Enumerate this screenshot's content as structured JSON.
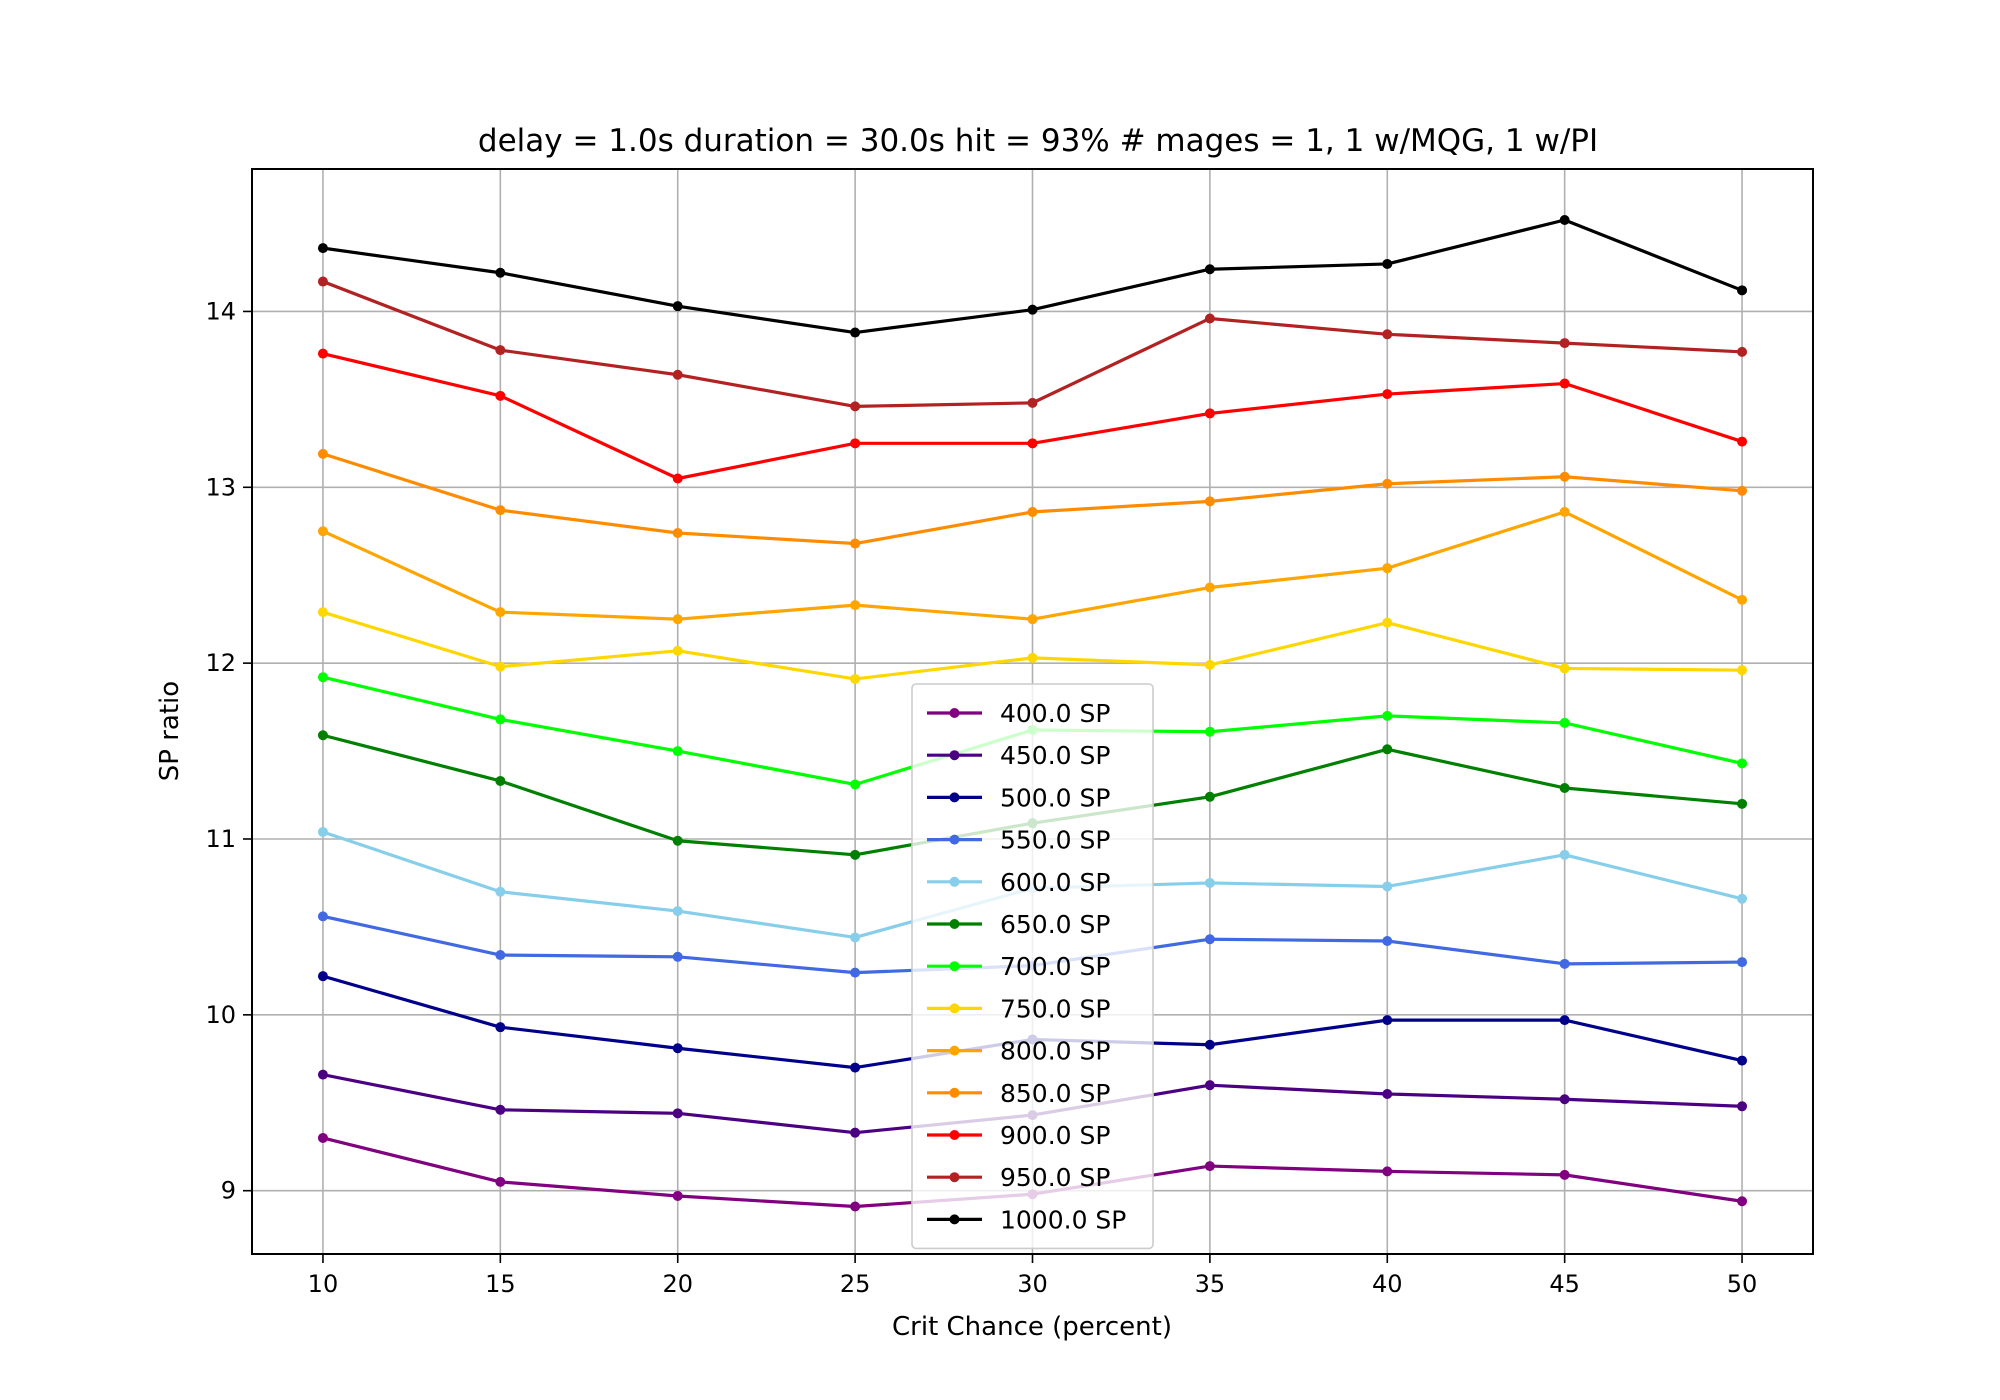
{
  "chart_data": {
    "type": "line",
    "title": "delay = 1.0s duration = 30.0s hit = 93% # mages = 1, 1 w/MQG, 1 w/PI",
    "xlabel": "Crit Chance (percent)",
    "ylabel": "SP ratio",
    "x": [
      10,
      15,
      20,
      25,
      30,
      35,
      40,
      45,
      50
    ],
    "xlim": [
      8.0,
      52.0
    ],
    "ylim": [
      8.64,
      14.81
    ],
    "xticks": [
      "10",
      "15",
      "20",
      "25",
      "30",
      "35",
      "40",
      "45",
      "50"
    ],
    "yticks": [
      "9",
      "10",
      "11",
      "12",
      "13",
      "14"
    ],
    "grid": true,
    "legend_position": "lower-center",
    "series": [
      {
        "name": "400.0 SP",
        "color": "#800080",
        "values": [
          9.3,
          9.05,
          8.97,
          8.91,
          8.98,
          9.14,
          9.11,
          9.09,
          8.94
        ]
      },
      {
        "name": "450.0 SP",
        "color": "#4b0082",
        "values": [
          9.66,
          9.46,
          9.44,
          9.33,
          9.43,
          9.6,
          9.55,
          9.52,
          9.48
        ]
      },
      {
        "name": "500.0 SP",
        "color": "#00008b",
        "values": [
          10.22,
          9.93,
          9.81,
          9.7,
          9.86,
          9.83,
          9.97,
          9.97,
          9.74
        ]
      },
      {
        "name": "550.0 SP",
        "color": "#4169e1",
        "values": [
          10.56,
          10.34,
          10.33,
          10.24,
          10.28,
          10.43,
          10.42,
          10.29,
          10.3
        ]
      },
      {
        "name": "600.0 SP",
        "color": "#87ceeb",
        "values": [
          11.04,
          10.7,
          10.59,
          10.44,
          10.72,
          10.75,
          10.73,
          10.91,
          10.66
        ]
      },
      {
        "name": "650.0 SP",
        "color": "#008000",
        "values": [
          11.59,
          11.33,
          10.99,
          10.91,
          11.09,
          11.24,
          11.51,
          11.29,
          11.2
        ]
      },
      {
        "name": "700.0 SP",
        "color": "#00ff00",
        "values": [
          11.92,
          11.68,
          11.5,
          11.31,
          11.62,
          11.61,
          11.7,
          11.66,
          11.43
        ]
      },
      {
        "name": "750.0 SP",
        "color": "#ffd700",
        "values": [
          12.29,
          11.98,
          12.07,
          11.91,
          12.03,
          11.99,
          12.23,
          11.97,
          11.96
        ]
      },
      {
        "name": "800.0 SP",
        "color": "#ffa500",
        "values": [
          12.75,
          12.29,
          12.25,
          12.33,
          12.25,
          12.43,
          12.54,
          12.86,
          12.36
        ]
      },
      {
        "name": "850.0 SP",
        "color": "#ff8c00",
        "values": [
          13.19,
          12.87,
          12.74,
          12.68,
          12.86,
          12.92,
          13.02,
          13.06,
          12.98
        ]
      },
      {
        "name": "900.0 SP",
        "color": "#ff0000",
        "values": [
          13.76,
          13.52,
          13.05,
          13.25,
          13.25,
          13.42,
          13.53,
          13.59,
          13.26
        ]
      },
      {
        "name": "950.0 SP",
        "color": "#b22222",
        "values": [
          14.17,
          13.78,
          13.64,
          13.46,
          13.48,
          13.96,
          13.87,
          13.82,
          13.77
        ]
      },
      {
        "name": "1000.0 SP",
        "color": "#000000",
        "values": [
          14.36,
          14.22,
          14.03,
          13.88,
          14.01,
          14.24,
          14.27,
          14.52,
          14.12
        ]
      }
    ]
  }
}
